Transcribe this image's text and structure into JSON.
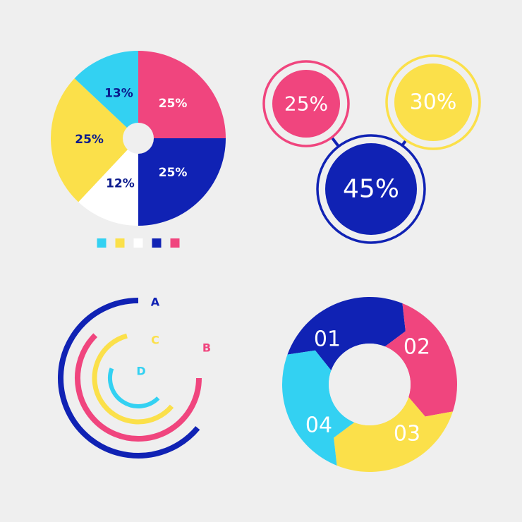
{
  "colors": {
    "background": "#efefef",
    "cyan": "#33d1f2",
    "yellow": "#fbe04a",
    "white": "#ffffff",
    "navy": "#1022b4",
    "pink": "#f0457e",
    "dark_text": "#0b1a8c"
  },
  "chart_data": [
    {
      "type": "pie",
      "style": "donut-small-hole",
      "slices": [
        {
          "value": 25,
          "label": "25%",
          "color": "#f0457e"
        },
        {
          "value": 25,
          "label": "25%",
          "color": "#1022b4"
        },
        {
          "value": 12,
          "label": "12%",
          "color": "#ffffff"
        },
        {
          "value": 25,
          "label": "25%",
          "color": "#fbe04a"
        },
        {
          "value": 13,
          "label": "13%",
          "color": "#33d1f2"
        }
      ],
      "legend": {
        "placement": "bottom",
        "swatches": [
          "#33d1f2",
          "#fbe04a",
          "#ffffff",
          "#1022b4",
          "#f0457e"
        ]
      }
    },
    {
      "type": "bubble",
      "bubbles": [
        {
          "value": 25,
          "label": "25%",
          "color": "#f0457e"
        },
        {
          "value": 30,
          "label": "30%",
          "color": "#fbe04a"
        },
        {
          "value": 45,
          "label": "45%",
          "color": "#1022b4"
        }
      ]
    },
    {
      "type": "radial-bar",
      "series": [
        {
          "name": "A",
          "color": "#1022b4"
        },
        {
          "name": "B",
          "color": "#f0457e"
        },
        {
          "name": "C",
          "color": "#fbe04a"
        },
        {
          "name": "D",
          "color": "#33d1f2"
        }
      ]
    },
    {
      "type": "donut-steps",
      "segments": [
        {
          "label": "01",
          "color": "#1022b4"
        },
        {
          "label": "02",
          "color": "#f0457e"
        },
        {
          "label": "03",
          "color": "#fbe04a"
        },
        {
          "label": "04",
          "color": "#33d1f2"
        }
      ]
    }
  ]
}
